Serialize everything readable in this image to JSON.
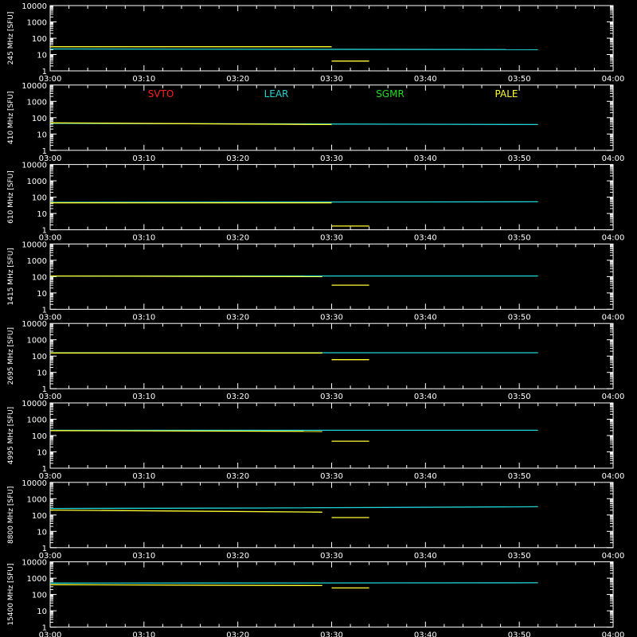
{
  "colors": {
    "background": "#000000",
    "axes": "#ffffff",
    "SVTO": "#ff2020",
    "LEAR": "#22d3d3",
    "SGMR": "#20dd20",
    "PALE": "#ffff33"
  },
  "chart_data": {
    "type": "line",
    "scale": "log",
    "ylim": [
      1,
      10000
    ],
    "y_ticks": [
      "10000",
      "1000",
      "100",
      "10",
      "1"
    ],
    "x_range": [
      "03:00",
      "04:00"
    ],
    "x_ticks": [
      "03:00",
      "03:10",
      "03:20",
      "03:30",
      "03:40",
      "03:50",
      "04:00"
    ],
    "legend": [
      "SVTO",
      "LEAR",
      "SGMR",
      "PALE"
    ],
    "panels": [
      {
        "ylabel": "245 MHz [SFU]",
        "series": [
          {
            "name": "LEAR",
            "points": [
              [
                "03:00",
                22
              ],
              [
                "03:52",
                20
              ]
            ]
          },
          {
            "name": "PALE",
            "points": [
              [
                "03:00",
                30
              ],
              [
                "03:30",
                30
              ]
            ]
          },
          {
            "name": "PALE",
            "points": [
              [
                "03:30",
                4
              ],
              [
                "03:34",
                4
              ]
            ]
          }
        ]
      },
      {
        "ylabel": "410 MHz [SFU]",
        "series": [
          {
            "name": "LEAR",
            "points": [
              [
                "03:00",
                45
              ],
              [
                "03:52",
                38
              ]
            ]
          },
          {
            "name": "PALE",
            "points": [
              [
                "03:00",
                48
              ],
              [
                "03:30",
                38
              ]
            ]
          }
        ]
      },
      {
        "ylabel": "610 MHz [SFU]",
        "series": [
          {
            "name": "LEAR",
            "points": [
              [
                "03:00",
                48
              ],
              [
                "03:52",
                52
              ]
            ]
          },
          {
            "name": "PALE",
            "points": [
              [
                "03:00",
                45
              ],
              [
                "03:30",
                45
              ]
            ]
          },
          {
            "name": "PALE",
            "points": [
              [
                "03:30",
                1.7
              ],
              [
                "03:34",
                1.7
              ]
            ]
          }
        ]
      },
      {
        "ylabel": "1415 MHz [SFU]",
        "series": [
          {
            "name": "LEAR",
            "points": [
              [
                "03:00",
                110
              ],
              [
                "03:52",
                110
              ]
            ]
          },
          {
            "name": "PALE",
            "points": [
              [
                "03:00",
                110
              ],
              [
                "03:29",
                100
              ]
            ]
          },
          {
            "name": "PALE",
            "points": [
              [
                "03:30",
                30
              ],
              [
                "03:34",
                30
              ]
            ]
          }
        ]
      },
      {
        "ylabel": "2695 MHz [SFU]",
        "series": [
          {
            "name": "LEAR",
            "points": [
              [
                "03:00",
                160
              ],
              [
                "03:52",
                160
              ]
            ]
          },
          {
            "name": "PALE",
            "points": [
              [
                "03:00",
                155
              ],
              [
                "03:29",
                155
              ]
            ]
          },
          {
            "name": "PALE",
            "points": [
              [
                "03:30",
                60
              ],
              [
                "03:34",
                60
              ]
            ]
          }
        ]
      },
      {
        "ylabel": "4995 MHz [SFU]",
        "series": [
          {
            "name": "LEAR",
            "points": [
              [
                "03:00",
                210
              ],
              [
                "03:52",
                210
              ]
            ]
          },
          {
            "name": "PALE",
            "points": [
              [
                "03:00",
                200
              ],
              [
                "03:29",
                180
              ]
            ]
          },
          {
            "name": "PALE",
            "points": [
              [
                "03:30",
                45
              ],
              [
                "03:34",
                45
              ]
            ]
          }
        ]
      },
      {
        "ylabel": "8800 MHz [SFU]",
        "series": [
          {
            "name": "LEAR",
            "points": [
              [
                "03:00",
                250
              ],
              [
                "03:23",
                270
              ],
              [
                "03:52",
                320
              ]
            ]
          },
          {
            "name": "PALE",
            "points": [
              [
                "03:00",
                200
              ],
              [
                "03:29",
                150
              ]
            ]
          },
          {
            "name": "PALE",
            "points": [
              [
                "03:30",
                70
              ],
              [
                "03:34",
                70
              ]
            ]
          }
        ]
      },
      {
        "ylabel": "15400 MHz [SFU]",
        "series": [
          {
            "name": "LEAR",
            "points": [
              [
                "03:00",
                500
              ],
              [
                "03:52",
                520
              ]
            ]
          },
          {
            "name": "PALE",
            "points": [
              [
                "03:00",
                400
              ],
              [
                "03:29",
                350
              ]
            ]
          },
          {
            "name": "PALE",
            "points": [
              [
                "03:30",
                250
              ],
              [
                "03:34",
                250
              ]
            ]
          }
        ]
      }
    ]
  }
}
